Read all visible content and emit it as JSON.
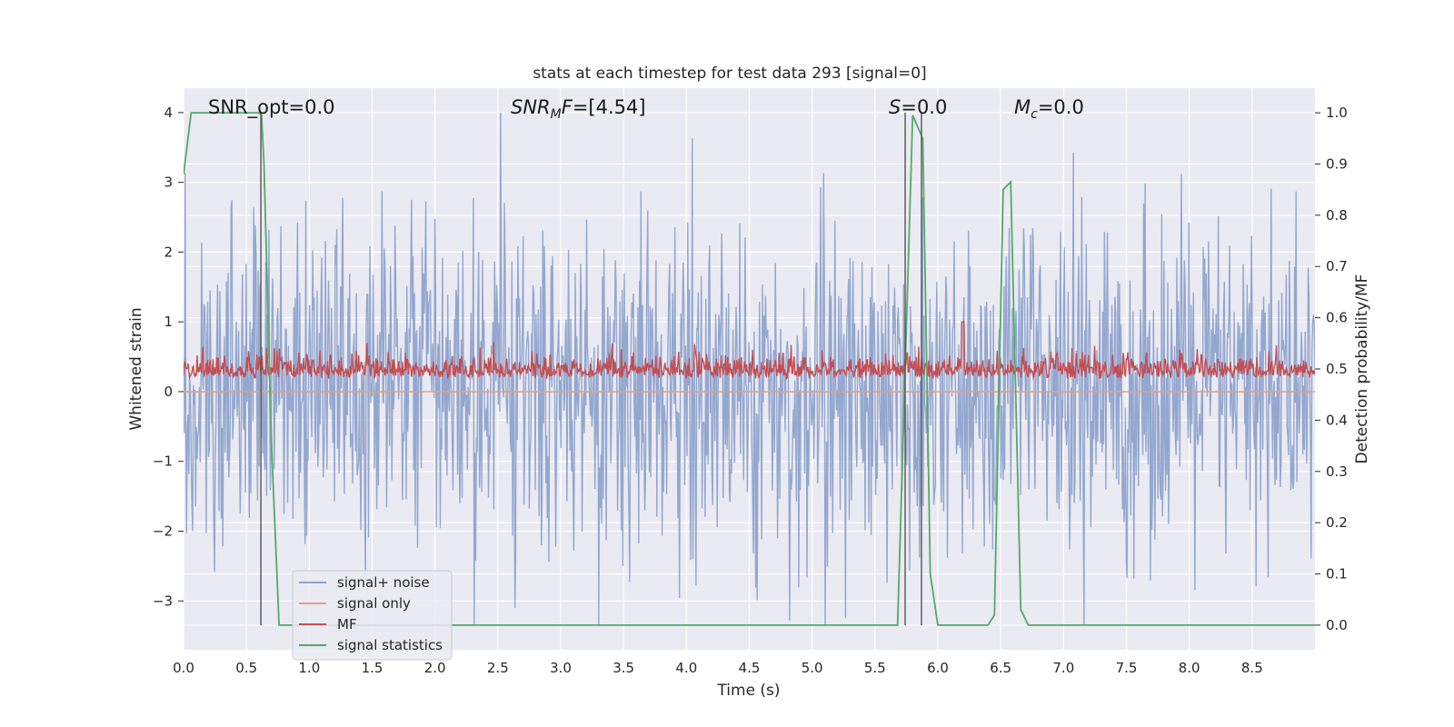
{
  "chart_data": {
    "type": "line",
    "title": "stats at each timestep for test data 293 [signal=0]",
    "xlabel": "Time (s)",
    "ylabel": "Whitened strain",
    "y2label": "Detection probability/MF",
    "xlim": [
      0.0,
      9.0
    ],
    "ylim": [
      -3.7,
      4.35
    ],
    "y2lim": [
      -0.048,
      1.048
    ],
    "xticks": [
      "0.0",
      "0.5",
      "1.0",
      "1.5",
      "2.0",
      "2.5",
      "3.0",
      "3.5",
      "4.0",
      "4.5",
      "5.0",
      "5.5",
      "6.0",
      "6.5",
      "7.0",
      "7.5",
      "8.0",
      "8.5"
    ],
    "yticks": [
      "4",
      "3",
      "2",
      "1",
      "0",
      "−1",
      "−2",
      "−3"
    ],
    "y2ticks": [
      "1.0",
      "0.9",
      "0.8",
      "0.7",
      "0.6",
      "0.5",
      "0.4",
      "0.3",
      "0.2",
      "0.1",
      "0.0"
    ],
    "grid": true,
    "legend_position": "lower-left",
    "annotations": {
      "snr_opt": "SNR_opt=0.0",
      "snr_mf_main": "SNR",
      "snr_mf_sub": "M",
      "snr_mf_tail": "F=[4.54]",
      "s_main": "S",
      "s_tail": "=0.0",
      "mc_main": "M",
      "mc_sub": "c",
      "mc_tail": "=0.0"
    },
    "series": [
      {
        "name": "signal+ noise",
        "color": "#8fa3cc",
        "axis": "left",
        "note_values": "white noise, amplitude roughly within [-3.3, 4.0] across the whole 0-9 s span"
      },
      {
        "name": "signal only",
        "color": "#e8a07e",
        "axis": "left",
        "x": [
          0.0,
          9.0
        ],
        "y": [
          0.0,
          0.0
        ]
      },
      {
        "name": "MF",
        "color": "#c44e52",
        "axis": "left",
        "note_values": "fluctuates between about 0.0 and 0.8, centered near 0.25; peak near 1.0 at ~6.2 s"
      },
      {
        "name": "signal statistics",
        "color": "#55a868",
        "axis": "right",
        "x": [
          0.0,
          0.06,
          0.12,
          0.5,
          0.6,
          0.62,
          0.64,
          0.7,
          0.76,
          1.0,
          5.5,
          5.68,
          5.8,
          5.88,
          5.94,
          6.0,
          6.4,
          6.45,
          6.52,
          6.58,
          6.66,
          6.72,
          7.0,
          9.0
        ],
        "y": [
          0.88,
          1.0,
          1.0,
          1.0,
          1.0,
          0.995,
          0.9,
          0.35,
          0.0,
          0.0,
          0.0,
          0.0,
          0.995,
          0.95,
          0.1,
          0.0,
          0.0,
          0.02,
          0.85,
          0.865,
          0.03,
          0.0,
          0.0,
          0.0
        ]
      }
    ],
    "vlines": [
      {
        "x": 0.615,
        "y": [
          -3.35,
          4.0
        ]
      },
      {
        "x": 5.74,
        "y": [
          -3.35,
          4.0
        ]
      },
      {
        "x": 5.87,
        "y": [
          -3.35,
          4.0
        ]
      }
    ]
  }
}
